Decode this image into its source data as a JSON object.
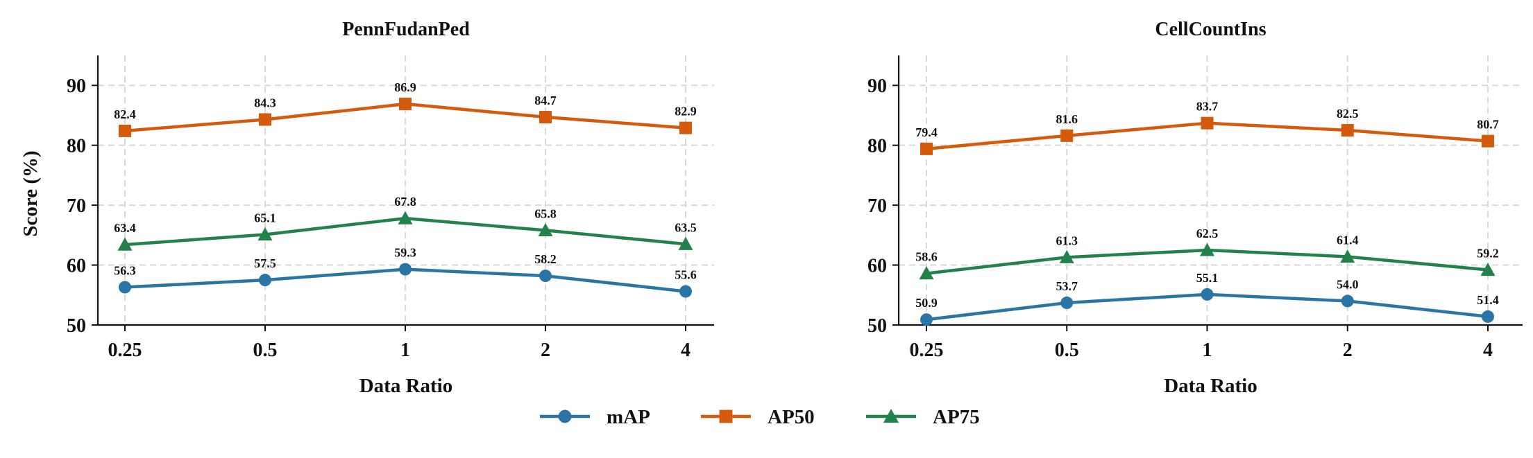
{
  "chart_data": [
    {
      "type": "line",
      "title": "PennFudanPed",
      "xlabel": "Data Ratio",
      "ylabel": "Score (%)",
      "categories": [
        "0.25",
        "0.5",
        "1",
        "2",
        "4"
      ],
      "ylim": [
        50,
        95
      ],
      "yticks": [
        50,
        60,
        70,
        80,
        90
      ],
      "grid": true,
      "series": [
        {
          "name": "mAP",
          "values": [
            56.3,
            57.5,
            59.3,
            58.2,
            55.6
          ],
          "labels": [
            "56.3",
            "57.5",
            "59.3",
            "58.2",
            "55.6"
          ]
        },
        {
          "name": "AP50",
          "values": [
            82.4,
            84.3,
            86.9,
            84.7,
            82.9
          ],
          "labels": [
            "82.4",
            "84.3",
            "86.9",
            "84.7",
            "82.9"
          ]
        },
        {
          "name": "AP75",
          "values": [
            63.4,
            65.1,
            67.8,
            65.8,
            63.5
          ],
          "labels": [
            "63.4",
            "65.1",
            "67.8",
            "65.8",
            "63.5"
          ]
        }
      ]
    },
    {
      "type": "line",
      "title": "CellCountIns",
      "xlabel": "Data Ratio",
      "ylabel": "",
      "categories": [
        "0.25",
        "0.5",
        "1",
        "2",
        "4"
      ],
      "ylim": [
        50,
        95
      ],
      "yticks": [
        50,
        60,
        70,
        80,
        90
      ],
      "grid": true,
      "series": [
        {
          "name": "mAP",
          "values": [
            50.9,
            53.7,
            55.1,
            54.0,
            51.4
          ],
          "labels": [
            "50.9",
            "53.7",
            "55.1",
            "54.0",
            "51.4"
          ]
        },
        {
          "name": "AP50",
          "values": [
            79.4,
            81.6,
            83.7,
            82.5,
            80.7
          ],
          "labels": [
            "79.4",
            "81.6",
            "83.7",
            "82.5",
            "80.7"
          ]
        },
        {
          "name": "AP75",
          "values": [
            58.6,
            61.3,
            62.5,
            61.4,
            59.2
          ],
          "labels": [
            "58.6",
            "61.3",
            "62.5",
            "61.4",
            "59.2"
          ]
        }
      ]
    }
  ],
  "legend": {
    "placement": "bottom-center",
    "items": [
      {
        "name": "mAP",
        "color": "#2a74a6",
        "marker": "circle"
      },
      {
        "name": "AP50",
        "color": "#d45a0c",
        "marker": "square"
      },
      {
        "name": "AP75",
        "color": "#23824b",
        "marker": "triangle"
      }
    ]
  },
  "series_style": {
    "mAP": {
      "color": "#2a74a6",
      "marker": "circle"
    },
    "AP50": {
      "color": "#d45a0c",
      "marker": "square"
    },
    "AP75": {
      "color": "#23824b",
      "marker": "triangle"
    }
  }
}
